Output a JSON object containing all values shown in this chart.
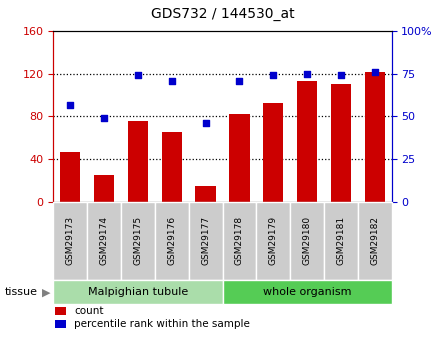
{
  "title": "GDS732 / 144530_at",
  "categories": [
    "GSM29173",
    "GSM29174",
    "GSM29175",
    "GSM29176",
    "GSM29177",
    "GSM29178",
    "GSM29179",
    "GSM29180",
    "GSM29181",
    "GSM29182"
  ],
  "bar_values": [
    47,
    25,
    76,
    65,
    15,
    82,
    93,
    113,
    110,
    122
  ],
  "percentile_values": [
    57,
    49,
    74,
    71,
    46,
    71,
    74,
    76
  ],
  "percentile_values_all": [
    57,
    49,
    74,
    71,
    46,
    71,
    74,
    75,
    74,
    76
  ],
  "bar_color": "#cc0000",
  "dot_color": "#0000cc",
  "left_ylim": [
    0,
    160
  ],
  "right_ylim": [
    0,
    100
  ],
  "left_yticks": [
    0,
    40,
    80,
    120,
    160
  ],
  "right_yticks": [
    0,
    25,
    50,
    75,
    100
  ],
  "right_yticklabels": [
    "0",
    "25",
    "50",
    "75",
    "100%"
  ],
  "grid_values": [
    40,
    80,
    120
  ],
  "tissue_groups": [
    {
      "label": "Malpighian tubule",
      "start": 0,
      "end": 5,
      "color": "#aaddaa"
    },
    {
      "label": "whole organism",
      "start": 5,
      "end": 10,
      "color": "#55cc55"
    }
  ],
  "tissue_label": "tissue",
  "legend_count_label": "count",
  "legend_pct_label": "percentile rank within the sample",
  "xtick_bg_color": "#cccccc",
  "plot_bg": "#ffffff",
  "fig_bg": "#ffffff"
}
